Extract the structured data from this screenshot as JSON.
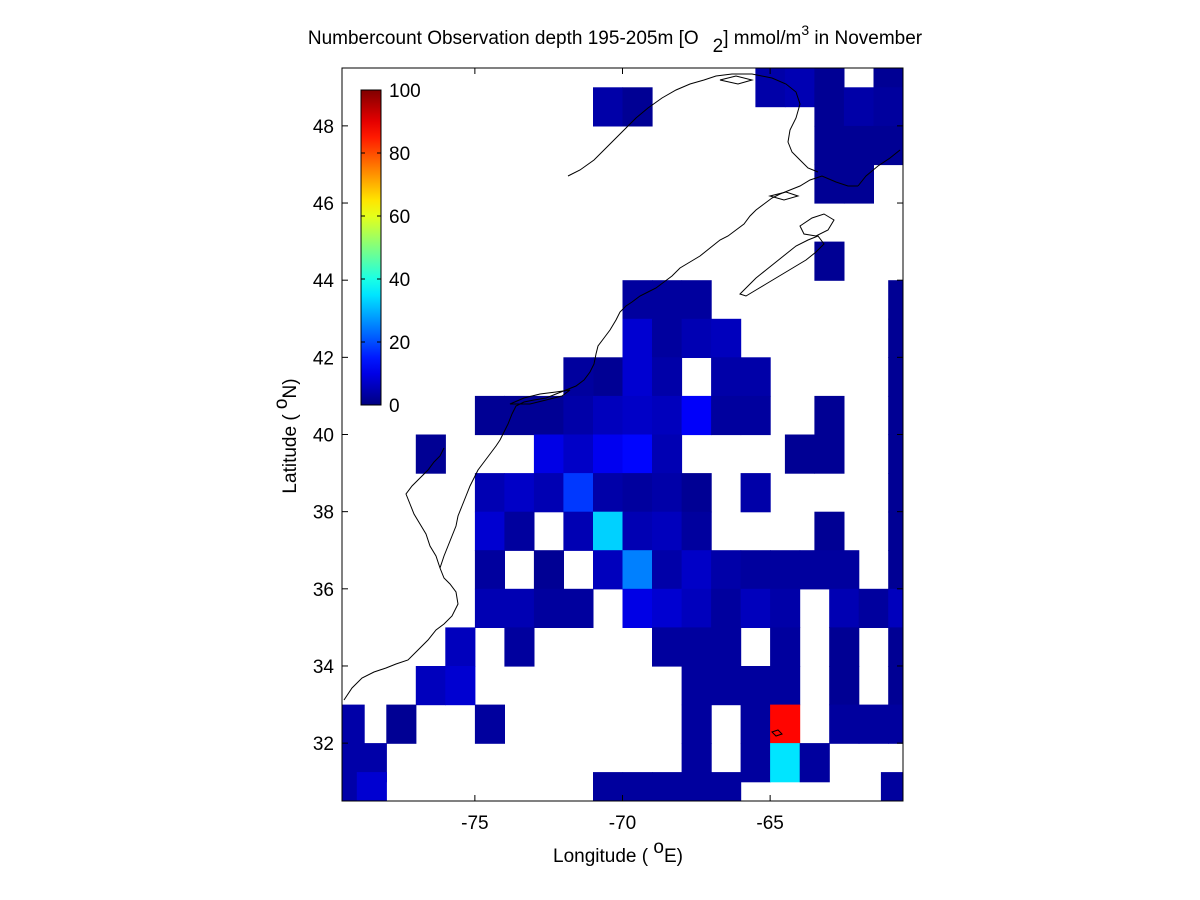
{
  "chart_data": {
    "type": "heatmap",
    "title": {
      "main": "Numbercount Observation depth 195-205m [O",
      "sub_index": "2",
      "units_pre": "] mmol/m",
      "units_sup": "3",
      "suffix": " in November"
    },
    "xlabel": {
      "pre": "Longitude ( ",
      "sup": "o",
      "post": "E)"
    },
    "ylabel": {
      "pre": "Latitude ( ",
      "sup": "o",
      "post": "N)"
    },
    "xlim": [
      -79.5,
      -60.5
    ],
    "ylim": [
      30.5,
      49.5
    ],
    "xticks": [
      -75,
      -70,
      -65
    ],
    "yticks": [
      32,
      34,
      36,
      38,
      40,
      42,
      44,
      46,
      48
    ],
    "grid": false,
    "colormap": "jet",
    "colorbar": {
      "min": 0,
      "max": 100,
      "ticks": [
        0,
        20,
        40,
        60,
        80,
        100
      ],
      "placement": "top-left inside axes"
    },
    "cell_size_deg": 1,
    "cells": [
      {
        "lon": -65,
        "lat": 49,
        "v": 4
      },
      {
        "lon": -64,
        "lat": 49,
        "v": 5
      },
      {
        "lon": -63,
        "lat": 49,
        "v": 2
      },
      {
        "lon": -61,
        "lat": 49,
        "v": 2
      },
      {
        "lon": -70.5,
        "lat": 48.5,
        "v": 4
      },
      {
        "lon": -69.5,
        "lat": 48.5,
        "v": 2
      },
      {
        "lon": -63,
        "lat": 48.5,
        "v": 2
      },
      {
        "lon": -62,
        "lat": 48.5,
        "v": 4
      },
      {
        "lon": -61,
        "lat": 48.5,
        "v": 3
      },
      {
        "lon": -63,
        "lat": 47.5,
        "v": 2
      },
      {
        "lon": -62,
        "lat": 47.5,
        "v": 2
      },
      {
        "lon": -61,
        "lat": 47.5,
        "v": 2
      },
      {
        "lon": -63,
        "lat": 46.5,
        "v": 2
      },
      {
        "lon": -62,
        "lat": 46.5,
        "v": 2
      },
      {
        "lon": -63,
        "lat": 44.5,
        "v": 2
      },
      {
        "lon": -69.5,
        "lat": 43.5,
        "v": 3
      },
      {
        "lon": -68.5,
        "lat": 43.5,
        "v": 3
      },
      {
        "lon": -67.5,
        "lat": 43.5,
        "v": 3
      },
      {
        "lon": -60.5,
        "lat": 43.5,
        "v": 2
      },
      {
        "lon": -69.5,
        "lat": 42.5,
        "v": 8
      },
      {
        "lon": -68.5,
        "lat": 42.5,
        "v": 3
      },
      {
        "lon": -67.5,
        "lat": 42.5,
        "v": 5
      },
      {
        "lon": -66.5,
        "lat": 42.5,
        "v": 6
      },
      {
        "lon": -60.5,
        "lat": 42.5,
        "v": 2
      },
      {
        "lon": -70.5,
        "lat": 41.5,
        "v": 2
      },
      {
        "lon": -69.5,
        "lat": 41.5,
        "v": 8
      },
      {
        "lon": -68.5,
        "lat": 41.5,
        "v": 4
      },
      {
        "lon": -66.5,
        "lat": 41.5,
        "v": 4
      },
      {
        "lon": -65.5,
        "lat": 41.5,
        "v": 4
      },
      {
        "lon": -71.5,
        "lat": 41.5,
        "v": 3
      },
      {
        "lon": -60.5,
        "lat": 41.5,
        "v": 2
      },
      {
        "lon": -74.5,
        "lat": 40.5,
        "v": 2
      },
      {
        "lon": -73.5,
        "lat": 40.5,
        "v": 2
      },
      {
        "lon": -72.5,
        "lat": 40.5,
        "v": 2
      },
      {
        "lon": -71.5,
        "lat": 40.5,
        "v": 4
      },
      {
        "lon": -70.5,
        "lat": 40.5,
        "v": 6
      },
      {
        "lon": -69.5,
        "lat": 40.5,
        "v": 7
      },
      {
        "lon": -68.5,
        "lat": 40.5,
        "v": 6
      },
      {
        "lon": -67.5,
        "lat": 40.5,
        "v": 12
      },
      {
        "lon": -66.5,
        "lat": 40.5,
        "v": 3
      },
      {
        "lon": -65.5,
        "lat": 40.5,
        "v": 3
      },
      {
        "lon": -63,
        "lat": 40.5,
        "v": 2
      },
      {
        "lon": -60.5,
        "lat": 40.5,
        "v": 2
      },
      {
        "lon": -76.5,
        "lat": 39.5,
        "v": 2
      },
      {
        "lon": -72.5,
        "lat": 39.5,
        "v": 10
      },
      {
        "lon": -71.5,
        "lat": 39.5,
        "v": 7
      },
      {
        "lon": -70.5,
        "lat": 39.5,
        "v": 11
      },
      {
        "lon": -69.5,
        "lat": 39.5,
        "v": 13
      },
      {
        "lon": -68.5,
        "lat": 39.5,
        "v": 5
      },
      {
        "lon": -64,
        "lat": 39.5,
        "v": 2
      },
      {
        "lon": -63,
        "lat": 39.5,
        "v": 2
      },
      {
        "lon": -60.5,
        "lat": 39.5,
        "v": 2
      },
      {
        "lon": -74.5,
        "lat": 38.5,
        "v": 5
      },
      {
        "lon": -73.5,
        "lat": 38.5,
        "v": 7
      },
      {
        "lon": -72.5,
        "lat": 38.5,
        "v": 5
      },
      {
        "lon": -71.5,
        "lat": 38.5,
        "v": 18
      },
      {
        "lon": -70.5,
        "lat": 38.5,
        "v": 4
      },
      {
        "lon": -69.5,
        "lat": 38.5,
        "v": 3
      },
      {
        "lon": -68.5,
        "lat": 38.5,
        "v": 4
      },
      {
        "lon": -67.5,
        "lat": 38.5,
        "v": 2
      },
      {
        "lon": -65.5,
        "lat": 38.5,
        "v": 4
      },
      {
        "lon": -60.5,
        "lat": 38.5,
        "v": 2
      },
      {
        "lon": -74.5,
        "lat": 37.5,
        "v": 8
      },
      {
        "lon": -73.5,
        "lat": 37.5,
        "v": 3
      },
      {
        "lon": -71.5,
        "lat": 37.5,
        "v": 5
      },
      {
        "lon": -70.5,
        "lat": 37.5,
        "v": 33
      },
      {
        "lon": -69.5,
        "lat": 37.5,
        "v": 5
      },
      {
        "lon": -68.5,
        "lat": 37.5,
        "v": 6
      },
      {
        "lon": -67.5,
        "lat": 37.5,
        "v": 3
      },
      {
        "lon": -63,
        "lat": 37.5,
        "v": 2
      },
      {
        "lon": -60.5,
        "lat": 37.5,
        "v": 2
      },
      {
        "lon": -74.5,
        "lat": 36.5,
        "v": 3
      },
      {
        "lon": -72.5,
        "lat": 36.5,
        "v": 2
      },
      {
        "lon": -70.5,
        "lat": 36.5,
        "v": 6
      },
      {
        "lon": -69.5,
        "lat": 36.5,
        "v": 25
      },
      {
        "lon": -68.5,
        "lat": 36.5,
        "v": 4
      },
      {
        "lon": -67.5,
        "lat": 36.5,
        "v": 7
      },
      {
        "lon": -66.5,
        "lat": 36.5,
        "v": 4
      },
      {
        "lon": -65.5,
        "lat": 36.5,
        "v": 3
      },
      {
        "lon": -64.5,
        "lat": 36.5,
        "v": 3
      },
      {
        "lon": -63.5,
        "lat": 36.5,
        "v": 3
      },
      {
        "lon": -62.5,
        "lat": 36.5,
        "v": 3
      },
      {
        "lon": -60.5,
        "lat": 36.5,
        "v": 2
      },
      {
        "lon": -74.5,
        "lat": 35.5,
        "v": 5
      },
      {
        "lon": -73.5,
        "lat": 35.5,
        "v": 5
      },
      {
        "lon": -72.5,
        "lat": 35.5,
        "v": 3
      },
      {
        "lon": -71.5,
        "lat": 35.5,
        "v": 3
      },
      {
        "lon": -69.5,
        "lat": 35.5,
        "v": 10
      },
      {
        "lon": -68.5,
        "lat": 35.5,
        "v": 8
      },
      {
        "lon": -67.5,
        "lat": 35.5,
        "v": 6
      },
      {
        "lon": -66.5,
        "lat": 35.5,
        "v": 3
      },
      {
        "lon": -65.5,
        "lat": 35.5,
        "v": 6
      },
      {
        "lon": -64.5,
        "lat": 35.5,
        "v": 4
      },
      {
        "lon": -62.5,
        "lat": 35.5,
        "v": 5
      },
      {
        "lon": -61.5,
        "lat": 35.5,
        "v": 3
      },
      {
        "lon": -60.5,
        "lat": 35.5,
        "v": 6
      },
      {
        "lon": -75.5,
        "lat": 34.5,
        "v": 6
      },
      {
        "lon": -73.5,
        "lat": 34.5,
        "v": 3
      },
      {
        "lon": -68.5,
        "lat": 34.5,
        "v": 3
      },
      {
        "lon": -67.5,
        "lat": 34.5,
        "v": 3
      },
      {
        "lon": -66.5,
        "lat": 34.5,
        "v": 3
      },
      {
        "lon": -64.5,
        "lat": 34.5,
        "v": 3
      },
      {
        "lon": -62.5,
        "lat": 34.5,
        "v": 2
      },
      {
        "lon": -60.5,
        "lat": 34.5,
        "v": 2
      },
      {
        "lon": -76.5,
        "lat": 33.5,
        "v": 6
      },
      {
        "lon": -75.5,
        "lat": 33.5,
        "v": 8
      },
      {
        "lon": -67.5,
        "lat": 33.5,
        "v": 3
      },
      {
        "lon": -66.5,
        "lat": 33.5,
        "v": 3
      },
      {
        "lon": -65.5,
        "lat": 33.5,
        "v": 3
      },
      {
        "lon": -64.5,
        "lat": 33.5,
        "v": 3
      },
      {
        "lon": -62.5,
        "lat": 33.5,
        "v": 2
      },
      {
        "lon": -60.5,
        "lat": 33.5,
        "v": 2
      },
      {
        "lon": -79.25,
        "lat": 32.5,
        "v": 4
      },
      {
        "lon": -77.5,
        "lat": 32.5,
        "v": 2
      },
      {
        "lon": -74.5,
        "lat": 32.5,
        "v": 3
      },
      {
        "lon": -67.5,
        "lat": 32.5,
        "v": 3
      },
      {
        "lon": -65.5,
        "lat": 32.5,
        "v": 3
      },
      {
        "lon": -64.5,
        "lat": 32.5,
        "v": 87
      },
      {
        "lon": -62.5,
        "lat": 32.5,
        "v": 3
      },
      {
        "lon": -61.5,
        "lat": 32.5,
        "v": 3
      },
      {
        "lon": -60.5,
        "lat": 32.5,
        "v": 3
      },
      {
        "lon": -79.25,
        "lat": 31.5,
        "v": 4
      },
      {
        "lon": -78.5,
        "lat": 31.5,
        "v": 4
      },
      {
        "lon": -67.5,
        "lat": 31.5,
        "v": 3
      },
      {
        "lon": -65.5,
        "lat": 31.5,
        "v": 3
      },
      {
        "lon": -64.5,
        "lat": 31.5,
        "v": 35
      },
      {
        "lon": -63.5,
        "lat": 31.5,
        "v": 3
      },
      {
        "lon": -79.25,
        "lat": 30.75,
        "v": 4
      },
      {
        "lon": -78.5,
        "lat": 30.75,
        "v": 8
      },
      {
        "lon": -70.5,
        "lat": 30.75,
        "v": 3
      },
      {
        "lon": -69.5,
        "lat": 30.75,
        "v": 3
      },
      {
        "lon": -68.5,
        "lat": 30.75,
        "v": 3
      },
      {
        "lon": -67.5,
        "lat": 30.75,
        "v": 3
      },
      {
        "lon": -66.5,
        "lat": 30.75,
        "v": 3
      },
      {
        "lon": -60.75,
        "lat": 30.75,
        "v": 3
      }
    ],
    "coastline_color": "#000000"
  }
}
